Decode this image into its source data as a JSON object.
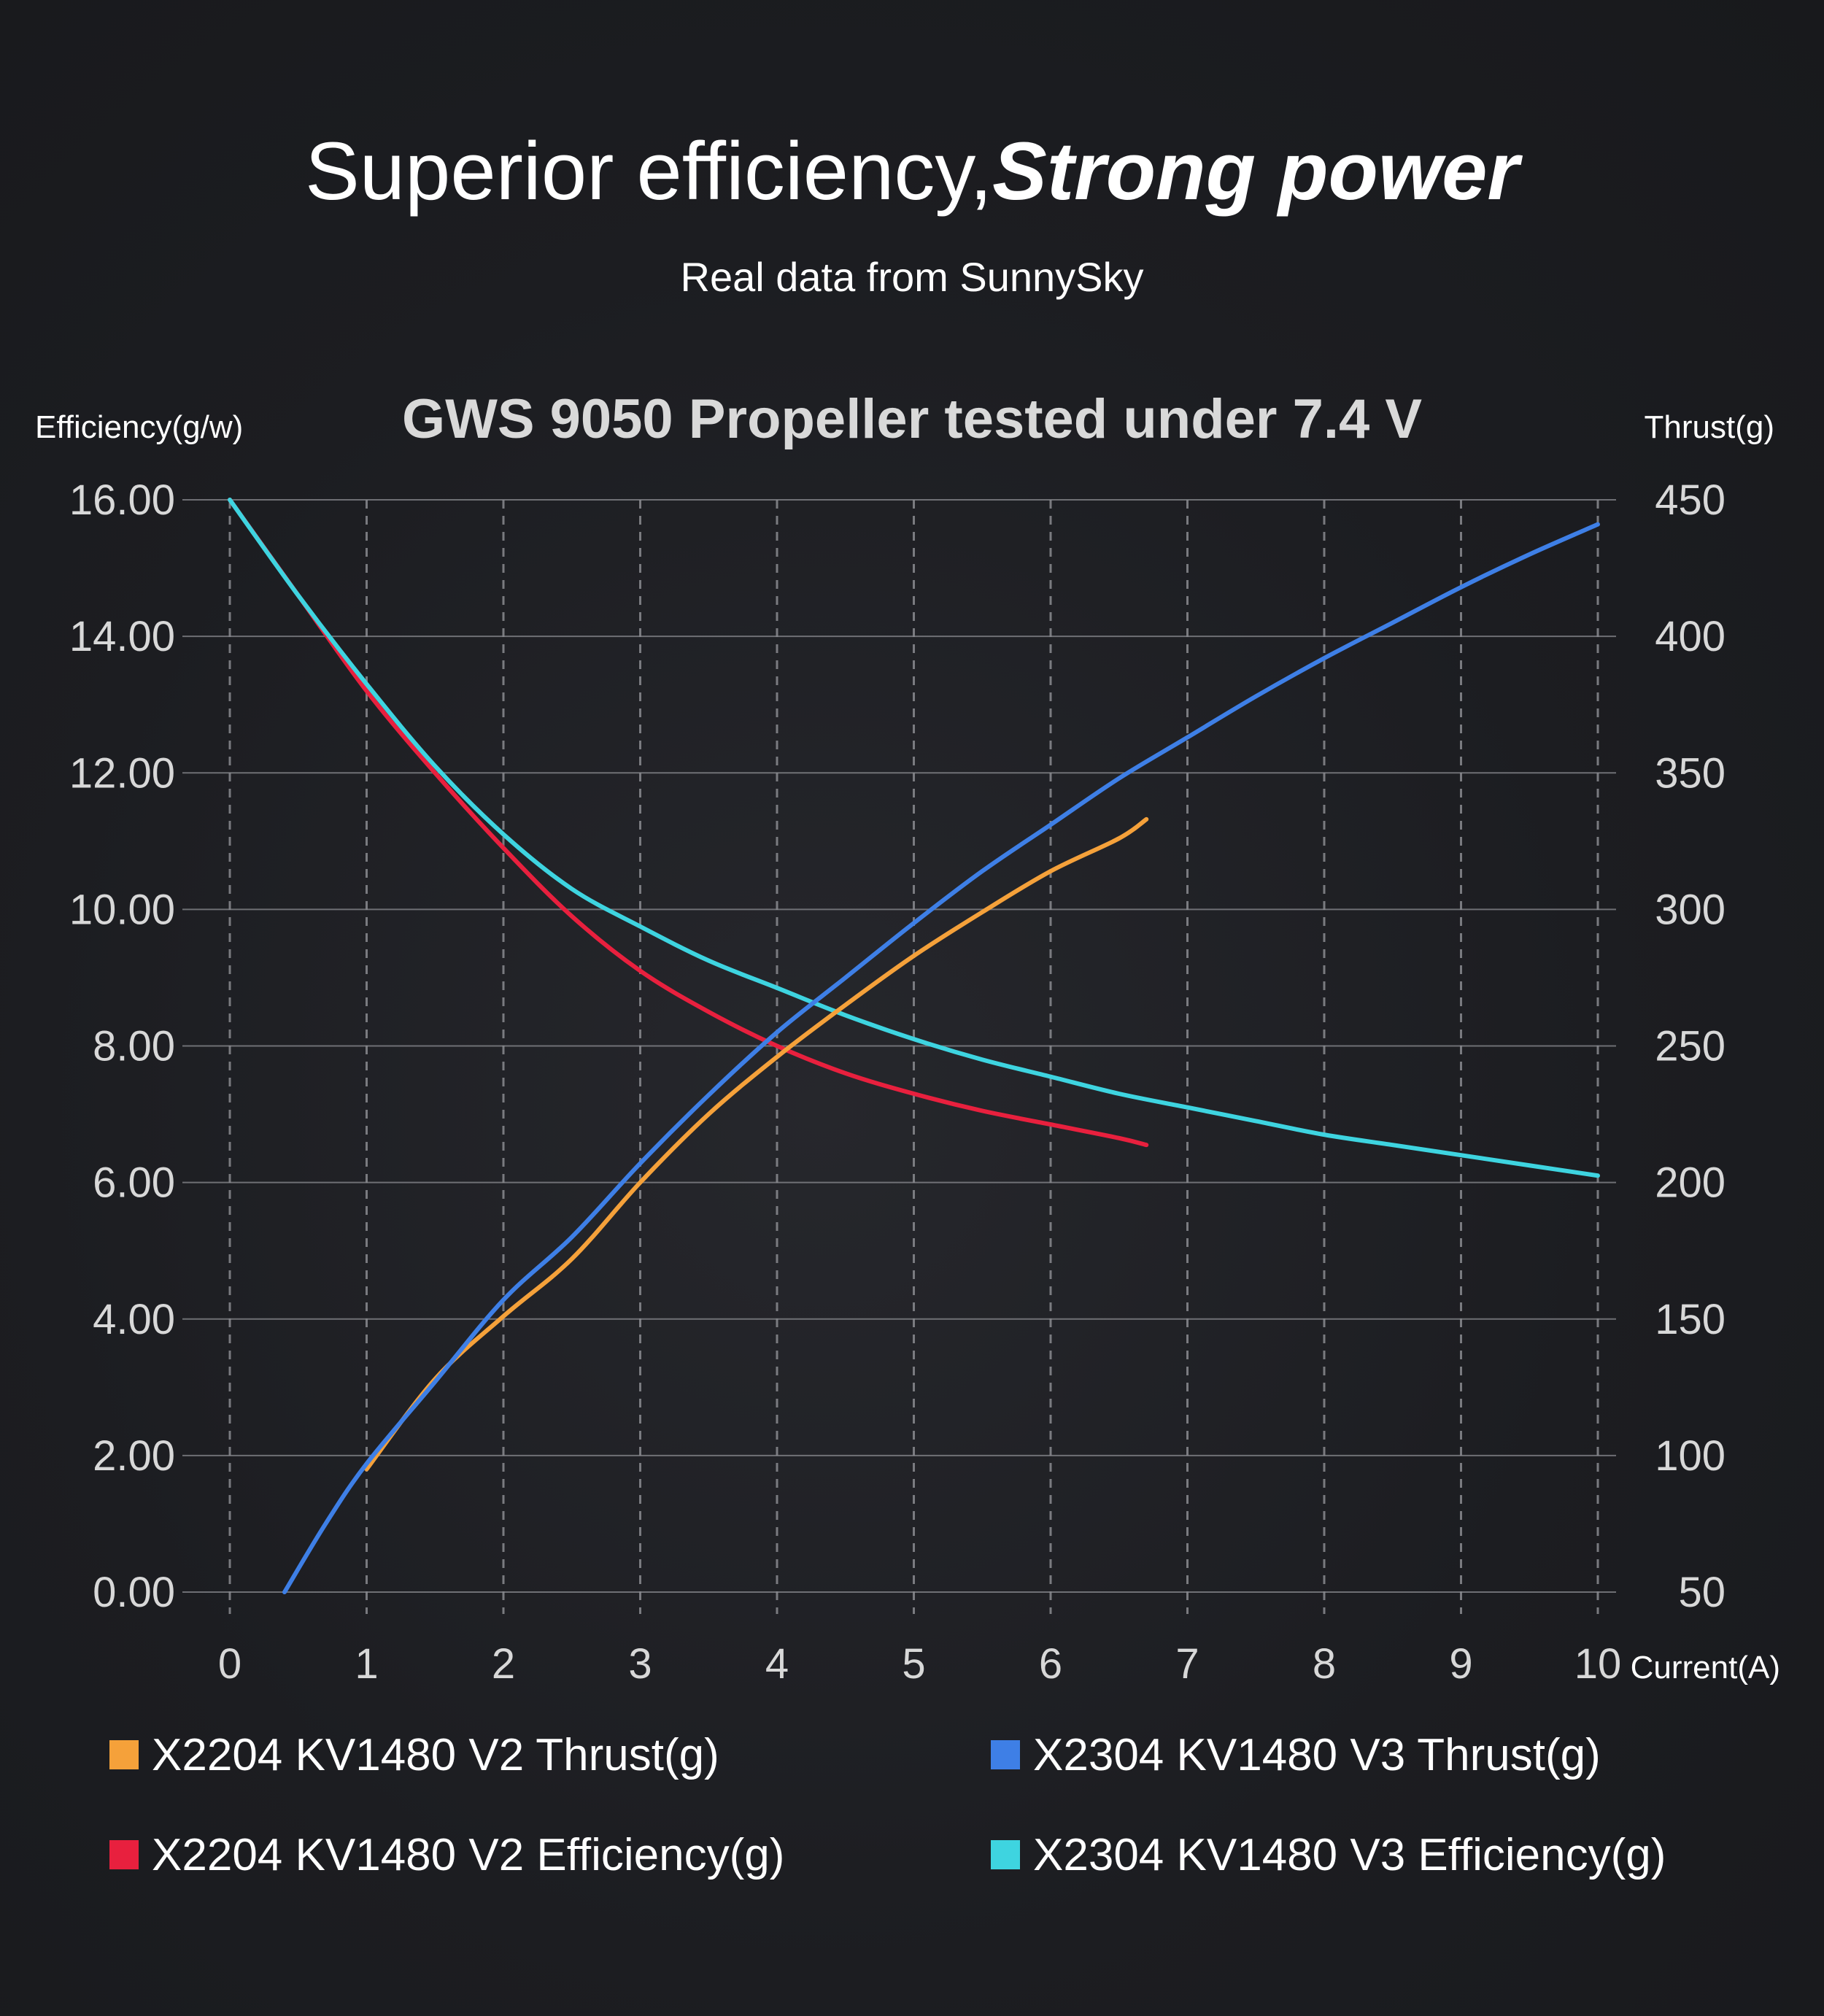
{
  "header": {
    "title_regular": "Superior efficiency,",
    "title_emphasis": "Strong power",
    "subtitle": "Real data from SunnySky"
  },
  "colors": {
    "background": "#1d1e22",
    "grid": "#8a8b90",
    "text": "#ffffff",
    "axis_text": "#d8d8d8"
  },
  "chart_data": {
    "type": "line",
    "title": "GWS 9050 Propeller tested under 7.4 V",
    "xlabel": "Current(A)",
    "ylabel_left": "Efficiency(g/w)",
    "ylabel_right": "Thrust(g)",
    "xlim": [
      0,
      10
    ],
    "ylim_left": [
      0,
      16
    ],
    "ylim_right": [
      50,
      450
    ],
    "x_ticks": [
      "0",
      "1",
      "2",
      "3",
      "4",
      "5",
      "6",
      "7",
      "8",
      "9",
      "10"
    ],
    "y_ticks_left": [
      "16.00",
      "14.00",
      "12.00",
      "10.00",
      "8.00",
      "6.00",
      "4.00",
      "2.00",
      "0.00"
    ],
    "y_ticks_right": [
      "450",
      "400",
      "350",
      "300",
      "250",
      "200",
      "150",
      "100",
      "50"
    ],
    "grid": true,
    "legend_position": "bottom",
    "series": [
      {
        "name": "X2204 KV1480 V2 Thrust(g)",
        "axis": "right",
        "color": "#f5a13a",
        "x": [
          1.0,
          1.5,
          2.0,
          2.5,
          3.0,
          3.5,
          4.0,
          4.5,
          5.0,
          5.5,
          6.0,
          6.5,
          6.7
        ],
        "y": [
          95,
          128,
          151,
          172,
          200,
          225,
          246,
          265,
          283,
          299,
          314,
          326,
          333
        ]
      },
      {
        "name": "X2304 KV1480 V3 Thrust(g)",
        "axis": "right",
        "color": "#3e7fe6",
        "x": [
          0.4,
          0.7,
          1.0,
          1.5,
          2.0,
          2.5,
          3.0,
          3.5,
          4.0,
          4.5,
          5.0,
          5.5,
          6.0,
          6.5,
          7.0,
          7.5,
          8.0,
          8.5,
          9.0,
          9.5,
          10.0
        ],
        "y": [
          50,
          75,
          97,
          127,
          157,
          180,
          207,
          232,
          255,
          275,
          295,
          314,
          331,
          348,
          363,
          378,
          392,
          405,
          418,
          430,
          441
        ]
      },
      {
        "name": "X2204 KV1480 V2 Efficiency(g)",
        "axis": "left",
        "color": "#e8203e",
        "x": [
          0.0,
          0.5,
          1.0,
          1.5,
          2.0,
          2.5,
          3.0,
          3.5,
          4.0,
          4.5,
          5.0,
          5.5,
          6.0,
          6.5,
          6.7
        ],
        "y": [
          16.0,
          14.6,
          13.2,
          12.0,
          10.9,
          9.9,
          9.1,
          8.5,
          8.0,
          7.6,
          7.3,
          7.05,
          6.85,
          6.65,
          6.55
        ]
      },
      {
        "name": "X2304 KV1480 V3 Efficiency(g)",
        "axis": "left",
        "color": "#3ed4e0",
        "x": [
          0.0,
          0.5,
          1.0,
          1.5,
          2.0,
          2.5,
          3.0,
          3.5,
          4.0,
          4.5,
          5.0,
          5.5,
          6.0,
          6.5,
          7.0,
          7.5,
          8.0,
          8.5,
          9.0,
          9.5,
          10.0
        ],
        "y": [
          16.0,
          14.6,
          13.3,
          12.1,
          11.1,
          10.3,
          9.75,
          9.25,
          8.85,
          8.45,
          8.1,
          7.8,
          7.55,
          7.3,
          7.1,
          6.9,
          6.7,
          6.55,
          6.4,
          6.25,
          6.1
        ]
      }
    ]
  }
}
